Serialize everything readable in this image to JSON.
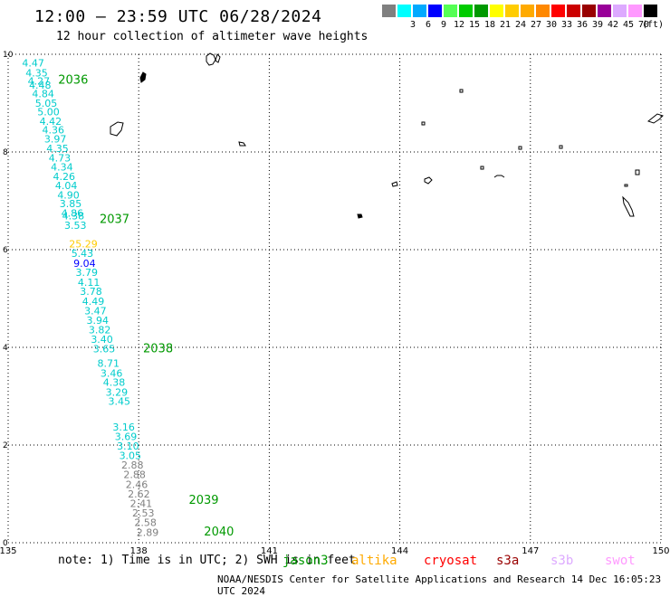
{
  "header": {
    "title": "12:00 – 23:59 UTC 06/28/2024",
    "subtitle": "12 hour collection of altimeter wave heights"
  },
  "legend": {
    "colors": [
      "#808080",
      "#00ffff",
      "#00aaff",
      "#0000ff",
      "#55ff55",
      "#00cc00",
      "#009900",
      "#ffff00",
      "#ffcc00",
      "#ffaa00",
      "#ff8800",
      "#ff0000",
      "#cc0000",
      "#990000",
      "#990099",
      "#ddaaff",
      "#ff99ff",
      "#000000"
    ],
    "labels": [
      "3",
      "6",
      "9",
      "12",
      "15",
      "18",
      "21",
      "24",
      "27",
      "30",
      "33",
      "36",
      "39",
      "42",
      "45",
      "70"
    ],
    "unit": "(ft)"
  },
  "map": {
    "lon_ticks": [
      "135",
      "138",
      "141",
      "144",
      "147",
      "150"
    ],
    "lat_ticks": [
      "0",
      "2",
      "4",
      "6",
      "8",
      "10"
    ],
    "lon_range": [
      135,
      150
    ],
    "lat_range": [
      0,
      10
    ],
    "gridlines": true
  },
  "observations": [
    {
      "v": "4.47",
      "lon": 135.32,
      "lat": 9.75,
      "c": "#00cccc"
    },
    {
      "v": "4.35",
      "lon": 135.4,
      "lat": 9.55,
      "c": "#00cccc"
    },
    {
      "v": "4.27",
      "lon": 135.45,
      "lat": 9.38,
      "c": "#00cccc"
    },
    {
      "v": "4.48",
      "lon": 135.48,
      "lat": 9.3,
      "c": "#00cccc"
    },
    {
      "v": "4.84",
      "lon": 135.55,
      "lat": 9.12,
      "c": "#00cccc"
    },
    {
      "v": "5.05",
      "lon": 135.62,
      "lat": 8.93,
      "c": "#00cccc"
    },
    {
      "v": "5.00",
      "lon": 135.67,
      "lat": 8.75,
      "c": "#00cccc"
    },
    {
      "v": "4.42",
      "lon": 135.72,
      "lat": 8.56,
      "c": "#00cccc"
    },
    {
      "v": "4.36",
      "lon": 135.78,
      "lat": 8.38,
      "c": "#00cccc"
    },
    {
      "v": "3.97",
      "lon": 135.83,
      "lat": 8.19,
      "c": "#00cccc"
    },
    {
      "v": "4.35",
      "lon": 135.88,
      "lat": 8.0,
      "c": "#00cccc"
    },
    {
      "v": "4.73",
      "lon": 135.93,
      "lat": 7.81,
      "c": "#00cccc"
    },
    {
      "v": "4.34",
      "lon": 135.98,
      "lat": 7.62,
      "c": "#00cccc"
    },
    {
      "v": "4.26",
      "lon": 136.03,
      "lat": 7.43,
      "c": "#00cccc"
    },
    {
      "v": "4.04",
      "lon": 136.08,
      "lat": 7.24,
      "c": "#00cccc"
    },
    {
      "v": "4.90",
      "lon": 136.13,
      "lat": 7.05,
      "c": "#00cccc"
    },
    {
      "v": "3.85",
      "lon": 136.18,
      "lat": 6.87,
      "c": "#00cccc"
    },
    {
      "v": "4.86",
      "lon": 136.22,
      "lat": 6.68,
      "c": "#00cccc"
    },
    {
      "v": "4.38",
      "lon": 136.24,
      "lat": 6.62,
      "c": "#00cccc"
    },
    {
      "v": "3.53",
      "lon": 136.29,
      "lat": 6.43,
      "c": "#00cccc"
    },
    {
      "v": "25.29",
      "lon": 136.4,
      "lat": 6.05,
      "c": "#ffcc00"
    },
    {
      "v": "5.43",
      "lon": 136.45,
      "lat": 5.85,
      "c": "#00cccc"
    },
    {
      "v": "9.04",
      "lon": 136.5,
      "lat": 5.65,
      "c": "#0000ff"
    },
    {
      "v": "3.79",
      "lon": 136.55,
      "lat": 5.46,
      "c": "#00cccc"
    },
    {
      "v": "4.11",
      "lon": 136.6,
      "lat": 5.26,
      "c": "#00cccc"
    },
    {
      "v": "3.78",
      "lon": 136.65,
      "lat": 5.07,
      "c": "#00cccc"
    },
    {
      "v": "4.49",
      "lon": 136.7,
      "lat": 4.87,
      "c": "#00cccc"
    },
    {
      "v": "3.47",
      "lon": 136.75,
      "lat": 4.68,
      "c": "#00cccc"
    },
    {
      "v": "3.94",
      "lon": 136.8,
      "lat": 4.48,
      "c": "#00cccc"
    },
    {
      "v": "3.82",
      "lon": 136.85,
      "lat": 4.29,
      "c": "#00cccc"
    },
    {
      "v": "3.40",
      "lon": 136.9,
      "lat": 4.09,
      "c": "#00cccc"
    },
    {
      "v": "3.65",
      "lon": 136.95,
      "lat": 3.9,
      "c": "#00cccc"
    },
    {
      "v": "8.71",
      "lon": 137.05,
      "lat": 3.6,
      "c": "#00cccc"
    },
    {
      "v": "3.46",
      "lon": 137.12,
      "lat": 3.4,
      "c": "#00cccc"
    },
    {
      "v": "4.38",
      "lon": 137.18,
      "lat": 3.21,
      "c": "#00cccc"
    },
    {
      "v": "3.29",
      "lon": 137.24,
      "lat": 3.01,
      "c": "#00cccc"
    },
    {
      "v": "3.45",
      "lon": 137.3,
      "lat": 2.82,
      "c": "#00cccc"
    },
    {
      "v": "3.16",
      "lon": 137.4,
      "lat": 2.3,
      "c": "#00cccc"
    },
    {
      "v": "3.69",
      "lon": 137.45,
      "lat": 2.1,
      "c": "#00cccc"
    },
    {
      "v": "3.10",
      "lon": 137.5,
      "lat": 1.91,
      "c": "#00cccc"
    },
    {
      "v": "3.05",
      "lon": 137.55,
      "lat": 1.71,
      "c": "#00cccc"
    },
    {
      "v": "2.88",
      "lon": 137.6,
      "lat": 1.52,
      "c": "#808080"
    },
    {
      "v": "2.88",
      "lon": 137.65,
      "lat": 1.32,
      "c": "#808080"
    },
    {
      "v": "2.46",
      "lon": 137.7,
      "lat": 1.12,
      "c": "#808080"
    },
    {
      "v": "2.62",
      "lon": 137.75,
      "lat": 0.93,
      "c": "#808080"
    },
    {
      "v": "2.41",
      "lon": 137.8,
      "lat": 0.73,
      "c": "#808080"
    },
    {
      "v": "2.53",
      "lon": 137.85,
      "lat": 0.54,
      "c": "#808080"
    },
    {
      "v": "2.58",
      "lon": 137.9,
      "lat": 0.34,
      "c": "#808080"
    },
    {
      "v": "2.89",
      "lon": 137.95,
      "lat": 0.14,
      "c": "#808080"
    }
  ],
  "time_marks": [
    {
      "t": "2036",
      "lon": 136.15,
      "lat": 9.4
    },
    {
      "t": "2037",
      "lon": 137.1,
      "lat": 6.55
    },
    {
      "t": "2038",
      "lon": 138.1,
      "lat": 3.9
    },
    {
      "t": "2039",
      "lon": 139.15,
      "lat": 0.8
    },
    {
      "t": "2040",
      "lon": 139.5,
      "lat": 0.15
    }
  ],
  "footer": {
    "note": "note:  1) Time is in UTC; 2) SWH is in feet",
    "satellites": [
      {
        "name": "jason3",
        "color": "#009900"
      },
      {
        "name": "altika",
        "color": "#ffaa00"
      },
      {
        "name": "cryosat",
        "color": "#ff0000"
      },
      {
        "name": "s3a",
        "color": "#990000"
      },
      {
        "name": "s3b",
        "color": "#ddaaff"
      },
      {
        "name": "swot",
        "color": "#ff99ff"
      }
    ],
    "credit": "NOAA/NESDIS Center for Satellite Applications and Research   14 Dec 16:05:23 UTC 2024"
  }
}
